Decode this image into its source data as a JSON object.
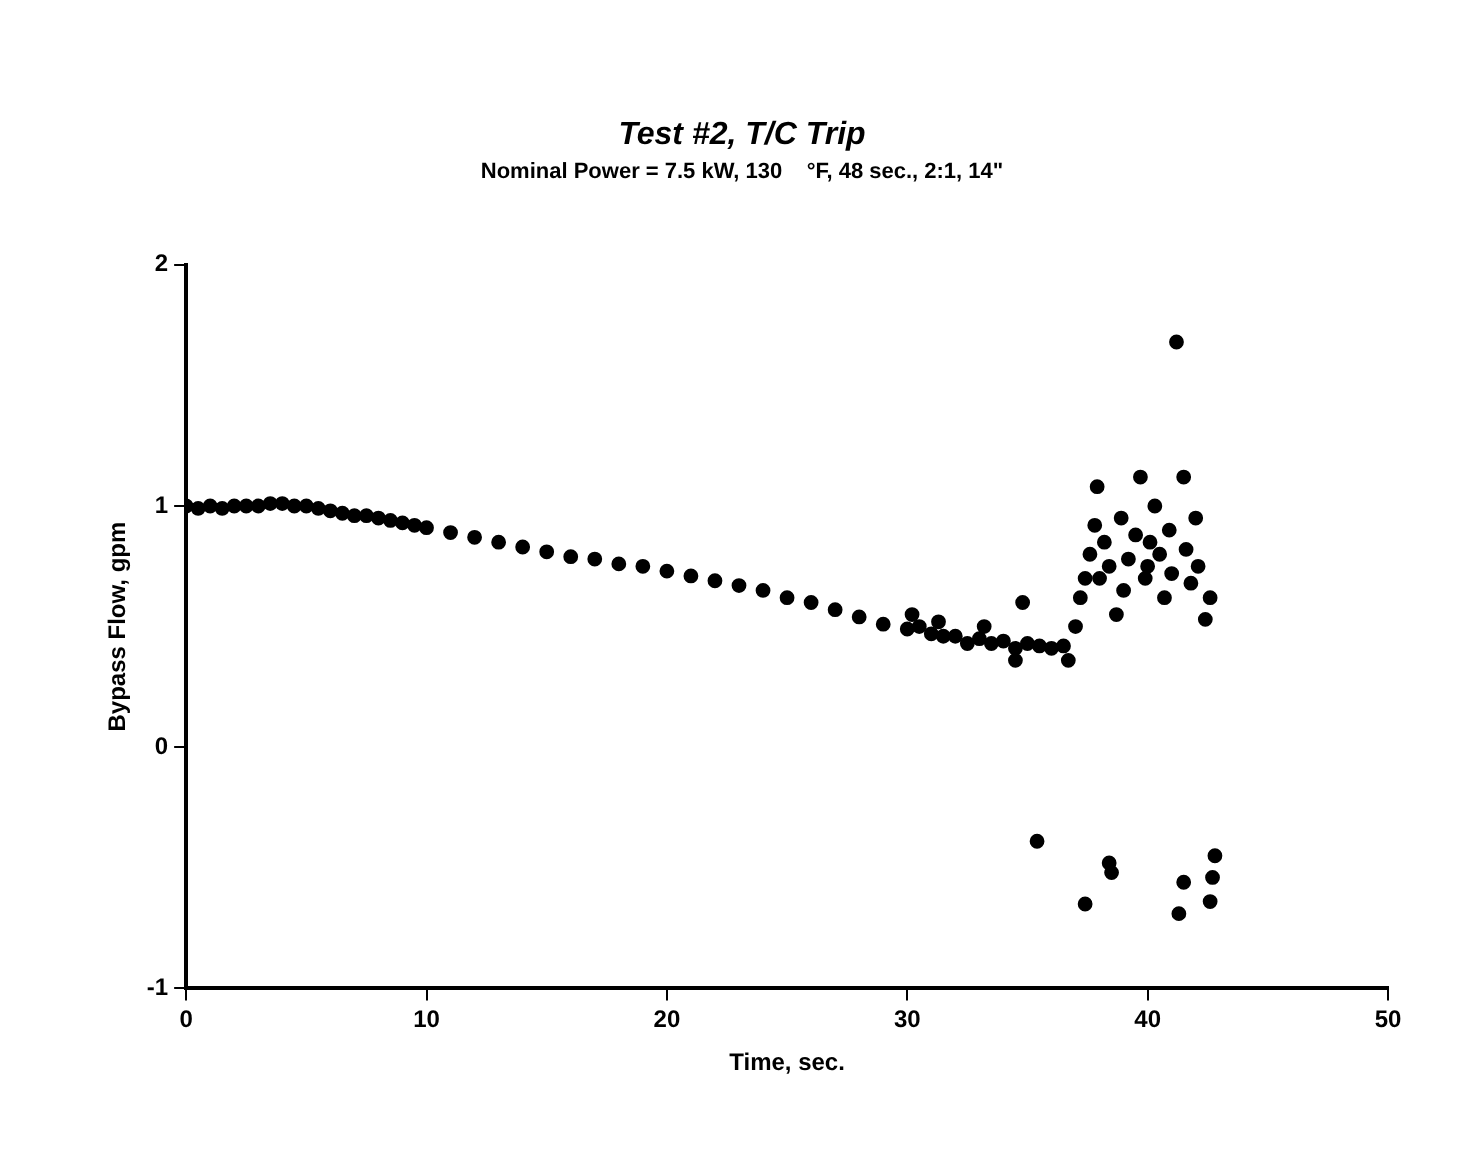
{
  "chart_data": {
    "type": "scatter",
    "title": "Test #2, T/C Trip",
    "subtitle": "Nominal Power = 7.5 kW, 130    °F, 48 sec., 2:1, 14\"",
    "xlabel": "Time, sec.",
    "ylabel": "Bypass Flow, gpm",
    "xlim": [
      0,
      50
    ],
    "xticks": [
      0,
      10,
      20,
      30,
      40,
      50
    ],
    "ylim": [
      -1,
      2
    ],
    "yticks": [
      -1,
      0,
      1,
      2
    ],
    "grid": false,
    "legend": false,
    "marker": "circle",
    "series": [
      {
        "color": "#000000",
        "x": [
          0,
          0.5,
          1,
          1.5,
          2,
          2.5,
          3,
          3.5,
          4,
          4.5,
          5,
          5.5,
          6,
          6.5,
          7,
          7.5,
          8,
          8.5,
          9,
          9.5,
          10,
          11,
          12,
          13,
          14,
          15,
          16,
          17,
          18,
          19,
          20,
          21,
          22,
          23,
          24,
          25,
          26,
          27,
          28,
          29,
          30,
          30.5,
          31,
          31.5,
          32,
          32.5,
          33,
          33.5,
          34,
          34.5,
          35,
          35.5,
          36,
          36.5,
          37,
          37.2,
          37.4,
          30.2,
          31.3,
          33.2,
          34.8,
          34.5,
          36.7,
          37.6,
          37.8,
          37.9,
          38.2,
          38.4,
          38.7,
          38.9,
          39.2,
          39.5,
          39.7,
          39.9,
          40.1,
          40.3,
          40.5,
          40.7,
          40.9,
          41.2,
          41.5,
          41.6,
          41.8,
          42,
          42.1,
          42.4,
          42.6,
          38,
          39,
          40,
          41,
          35.4,
          37.4,
          38.4,
          38.5,
          41.5,
          41.3,
          42.6,
          42.7,
          42.8
        ],
        "values": [
          1,
          0.99,
          1,
          0.99,
          1,
          1,
          1,
          1.01,
          1.01,
          1,
          1,
          0.99,
          0.98,
          0.97,
          0.96,
          0.96,
          0.95,
          0.94,
          0.93,
          0.92,
          0.91,
          0.89,
          0.87,
          0.85,
          0.83,
          0.81,
          0.79,
          0.78,
          0.76,
          0.75,
          0.73,
          0.71,
          0.69,
          0.67,
          0.65,
          0.62,
          0.6,
          0.57,
          0.54,
          0.51,
          0.49,
          0.5,
          0.47,
          0.46,
          0.46,
          0.43,
          0.45,
          0.43,
          0.44,
          0.41,
          0.43,
          0.42,
          0.41,
          0.42,
          0.5,
          0.62,
          0.7,
          0.55,
          0.52,
          0.5,
          0.6,
          0.36,
          0.36,
          0.8,
          0.92,
          1.08,
          0.85,
          0.75,
          0.55,
          0.95,
          0.78,
          0.88,
          1.12,
          0.7,
          0.85,
          1,
          0.8,
          0.62,
          0.9,
          1.68,
          1.12,
          0.82,
          0.68,
          0.95,
          0.75,
          0.53,
          0.62,
          0.7,
          0.65,
          0.75,
          0.72,
          -0.39,
          -0.65,
          -0.48,
          -0.52,
          -0.56,
          -0.69,
          -0.64,
          -0.54,
          -0.45
        ]
      }
    ]
  }
}
